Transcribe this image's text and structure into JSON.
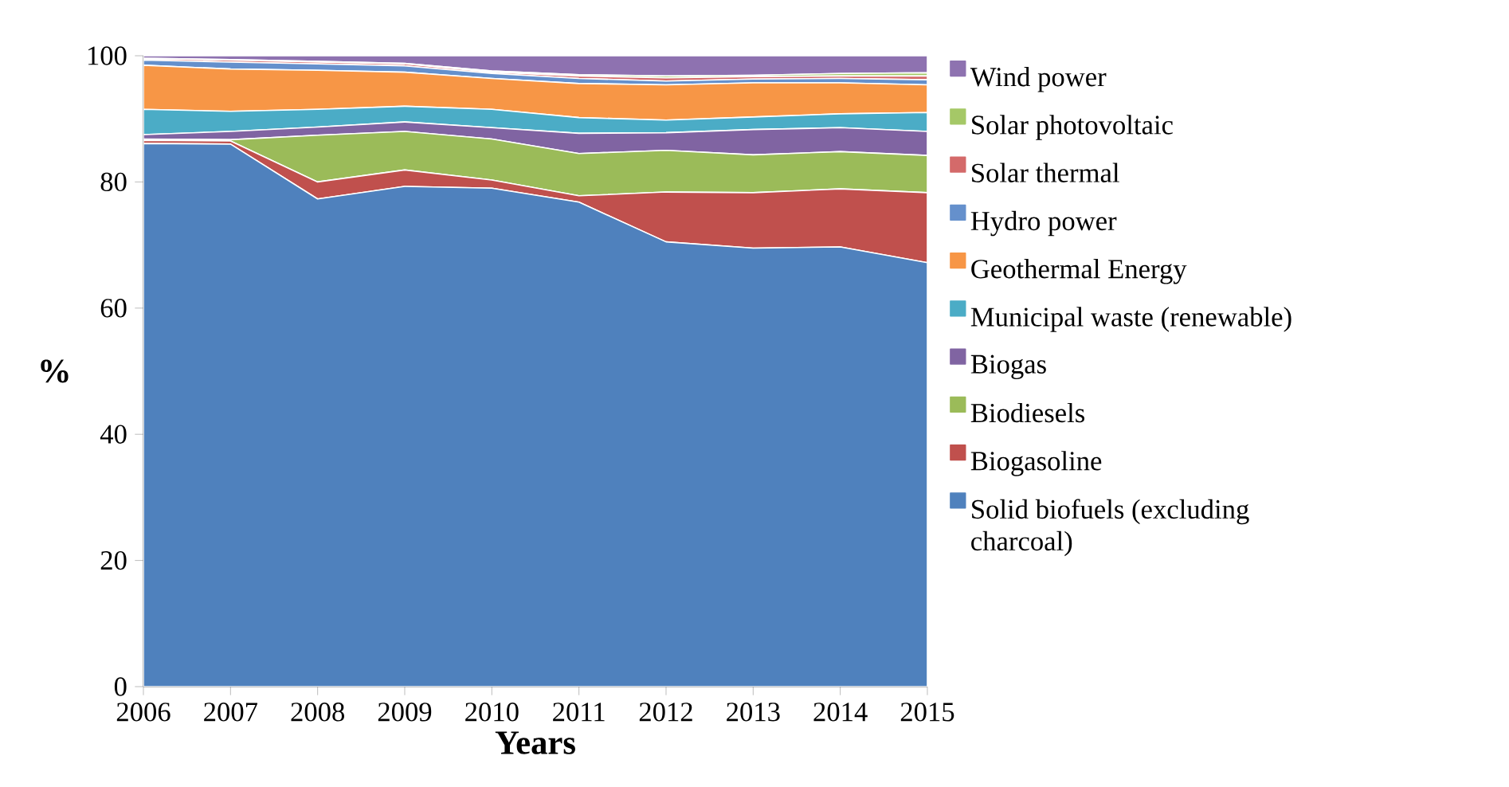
{
  "chart_data": {
    "type": "area",
    "stacked": true,
    "xlabel": "Years",
    "ylabel": "%",
    "categories": [
      "2006",
      "2007",
      "2008",
      "2009",
      "2010",
      "2011",
      "2012",
      "2013",
      "2014",
      "2015"
    ],
    "ylim": [
      0,
      100
    ],
    "yticks": [
      0,
      20,
      40,
      60,
      80,
      100
    ],
    "grid": false,
    "legend": "right",
    "series": [
      {
        "name": "Solid biofuels (excluding charcoal)",
        "color": "#4f81bd",
        "values": [
          86.1,
          86.0,
          77.3,
          79.3,
          79.0,
          76.8,
          70.5,
          69.5,
          69.7,
          67.2
        ]
      },
      {
        "name": "Biogasoline",
        "color": "#c0504d",
        "values": [
          0.5,
          0.5,
          2.7,
          2.6,
          1.3,
          1.0,
          7.9,
          8.8,
          9.2,
          11.1
        ]
      },
      {
        "name": "Biodiesels",
        "color": "#9bbb59",
        "values": [
          0.2,
          0.2,
          7.4,
          6.1,
          6.5,
          6.7,
          6.6,
          6.0,
          5.9,
          5.9
        ]
      },
      {
        "name": "Biogas",
        "color": "#8064a2",
        "values": [
          0.7,
          1.3,
          1.3,
          1.5,
          1.8,
          3.2,
          2.8,
          4.0,
          3.8,
          3.8
        ]
      },
      {
        "name": "Municipal waste (renewable)",
        "color": "#4bacc6",
        "values": [
          4.0,
          3.2,
          2.8,
          2.5,
          2.9,
          2.5,
          2.0,
          2.0,
          2.2,
          3.0
        ]
      },
      {
        "name": "Geothermal Energy",
        "color": "#f79646",
        "values": [
          7.0,
          6.7,
          6.2,
          5.4,
          4.9,
          5.4,
          5.6,
          5.4,
          4.9,
          4.4
        ]
      },
      {
        "name": "Hydro power",
        "color": "#6590cc",
        "values": [
          0.8,
          1.1,
          1.0,
          1.0,
          0.8,
          0.8,
          0.6,
          0.6,
          0.7,
          0.8
        ]
      },
      {
        "name": "Solar thermal",
        "color": "#d46a6a",
        "values": [
          0.2,
          0.3,
          0.3,
          0.3,
          0.2,
          0.4,
          0.5,
          0.4,
          0.4,
          0.6
        ]
      },
      {
        "name": "Solar photovoltaic",
        "color": "#a5c867",
        "values": [
          0.1,
          0.1,
          0.1,
          0.1,
          0.2,
          0.2,
          0.3,
          0.2,
          0.4,
          0.5
        ]
      },
      {
        "name": "Wind power",
        "color": "#8e72b0",
        "values": [
          0.4,
          0.6,
          0.9,
          1.2,
          2.4,
          3.0,
          3.2,
          3.1,
          2.8,
          2.7
        ]
      }
    ]
  }
}
